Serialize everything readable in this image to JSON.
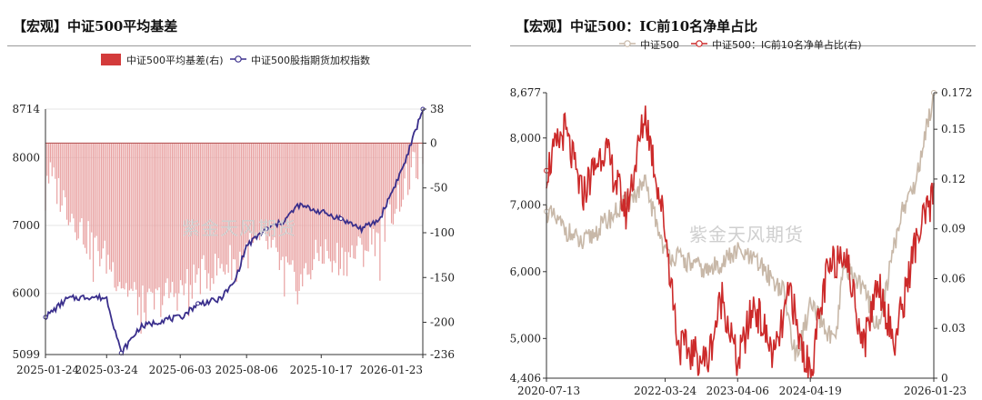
{
  "left_panel": {
    "title": "【宏观】中证500平均基差",
    "watermark": "紫金天风期货"
  },
  "right_panel": {
    "title": "【宏观】中证500：IC前10名净单占比",
    "watermark": "紫金天风期货"
  },
  "colors": {
    "basis": "#d33b3b",
    "basis_fill": "#e8a0a0",
    "index_line": "#3a2f8c",
    "csi500": "#c8b8a8",
    "ic_ratio": "#cc2a2a"
  },
  "chart_data": [
    {
      "type": "bar",
      "legend_placement": "top",
      "legend": [
        "中证500平均基差(右)",
        "中证500股指期货加权指数"
      ],
      "series": [
        {
          "name": "中证500平均基差(右)",
          "type": "bar",
          "axis": "right",
          "x": [
            "2025-01-24",
            "2025-02-14",
            "2025-03-07",
            "2025-03-24",
            "2025-04-11",
            "2025-05-01",
            "2025-05-20",
            "2025-06-03",
            "2025-06-20",
            "2025-07-10",
            "2025-07-25",
            "2025-08-06",
            "2025-08-25",
            "2025-09-10",
            "2025-09-25",
            "2025-10-17",
            "2025-11-05",
            "2025-11-25",
            "2025-12-12",
            "2026-01-05",
            "2026-01-23"
          ],
          "values": [
            -30,
            -70,
            -110,
            -130,
            -160,
            -185,
            -170,
            -165,
            -150,
            -140,
            -130,
            -120,
            -110,
            -140,
            -160,
            -120,
            -130,
            -120,
            -100,
            -50,
            -10
          ]
        },
        {
          "name": "中证500股指期货加权指数",
          "type": "line",
          "axis": "left",
          "x": [
            "2025-01-24",
            "2025-02-14",
            "2025-03-07",
            "2025-03-24",
            "2025-04-07",
            "2025-04-25",
            "2025-05-20",
            "2025-06-03",
            "2025-06-20",
            "2025-07-10",
            "2025-07-25",
            "2025-08-06",
            "2025-08-25",
            "2025-09-10",
            "2025-09-25",
            "2025-10-17",
            "2025-11-05",
            "2025-11-25",
            "2025-12-12",
            "2026-01-05",
            "2026-01-23"
          ],
          "values": [
            5650,
            5920,
            5950,
            5930,
            5120,
            5500,
            5620,
            5640,
            5850,
            5900,
            6150,
            6700,
            6950,
            7050,
            7300,
            7200,
            7100,
            6950,
            7080,
            7900,
            8714
          ]
        }
      ],
      "x_tick_labels": [
        "2025-01-24",
        "2025-03-24",
        "2025-06-03",
        "2025-08-06",
        "2025-10-17",
        "2026-01-23"
      ],
      "y_left": {
        "ticks": [
          "5099",
          "6000",
          "7000",
          "8000",
          "8714"
        ],
        "range": [
          5099,
          8714
        ]
      },
      "y_right": {
        "ticks": [
          "38",
          "0",
          "-50",
          "-100",
          "-150",
          "-200",
          "-236"
        ],
        "range": [
          -236,
          38
        ]
      }
    },
    {
      "type": "line",
      "legend_placement": "top-left",
      "legend": [
        "中证500",
        "中证500：IC前10名净单占比(右)"
      ],
      "series": [
        {
          "name": "中证500",
          "axis": "left",
          "x": [
            "2020-07-13",
            "2021-01-15",
            "2021-07-15",
            "2021-12-10",
            "2022-03-24",
            "2022-10-31",
            "2023-04-06",
            "2023-08-01",
            "2023-12-01",
            "2024-02-05",
            "2024-04-19",
            "2024-08-30",
            "2024-10-08",
            "2025-01-24",
            "2025-04-07",
            "2025-08-06",
            "2025-10-17",
            "2026-01-23"
          ],
          "values": [
            6900,
            6400,
            6900,
            7300,
            6300,
            6000,
            6300,
            6100,
            5700,
            4700,
            5500,
            4900,
            6100,
            5750,
            5150,
            6900,
            7300,
            8677
          ]
        },
        {
          "name": "中证500：IC前10名净单占比(右)",
          "axis": "right",
          "x": [
            "2020-07-13",
            "2020-10-15",
            "2021-01-15",
            "2021-05-10",
            "2021-09-01",
            "2021-12-10",
            "2022-03-24",
            "2022-06-01",
            "2022-10-31",
            "2023-01-15",
            "2023-04-06",
            "2023-07-01",
            "2023-10-15",
            "2024-01-10",
            "2024-02-05",
            "2024-04-19",
            "2024-07-10",
            "2024-10-08",
            "2025-01-24",
            "2025-04-07",
            "2025-07-01",
            "2025-10-17",
            "2026-01-23"
          ],
          "values": [
            0.125,
            0.15,
            0.11,
            0.14,
            0.1,
            0.16,
            0.09,
            0.02,
            0.01,
            0.05,
            0.008,
            0.045,
            0.012,
            0.055,
            0.03,
            0.003,
            0.06,
            0.08,
            0.02,
            0.06,
            0.02,
            0.08,
            0.11
          ]
        }
      ],
      "x_tick_labels": [
        "2020-07-13",
        "2022-03-24",
        "2023-04-06",
        "2024-04-19",
        "2026-01-23"
      ],
      "y_left": {
        "ticks": [
          "4,406",
          "5,000",
          "6,000",
          "7,000",
          "8,000",
          "8,677"
        ],
        "range": [
          4406,
          8677
        ]
      },
      "y_right": {
        "ticks": [
          "0",
          "0.03",
          "0.06",
          "0.09",
          "0.12",
          "0.15",
          "0.172"
        ],
        "range": [
          0,
          0.172
        ]
      }
    }
  ]
}
